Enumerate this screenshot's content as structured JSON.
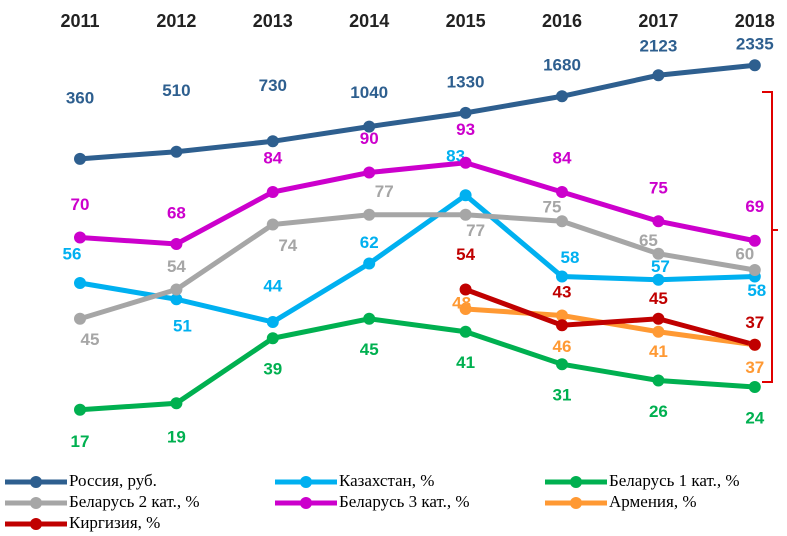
{
  "chart_data": {
    "type": "line",
    "categories": [
      "2011",
      "2012",
      "2013",
      "2014",
      "2015",
      "2016",
      "2017",
      "2018"
    ],
    "ylim": [
      0,
      140
    ],
    "y2lim": [
      -6100,
      3500
    ],
    "series": [
      {
        "name": "Россия, руб.",
        "color": "#2e5f8f",
        "axis": "y2",
        "values": [
          360,
          510,
          730,
          1040,
          1330,
          1680,
          2123,
          2335
        ]
      },
      {
        "name": "Казахстан, %",
        "color": "#00b0f0",
        "values": [
          56,
          51,
          44,
          62,
          83,
          58,
          57,
          58
        ]
      },
      {
        "name": "Беларусь 1 кат., %",
        "color": "#00b050",
        "values": [
          17,
          19,
          39,
          45,
          41,
          31,
          26,
          24
        ]
      },
      {
        "name": "Беларусь 2 кат., %",
        "color": "#a6a6a6",
        "values": [
          45,
          54,
          74,
          77,
          77,
          75,
          65,
          60
        ]
      },
      {
        "name": "Беларусь 3 кат., %",
        "color": "#cc00cc",
        "values": [
          70,
          68,
          84,
          90,
          93,
          84,
          75,
          69
        ]
      },
      {
        "name": "Армения, %",
        "color": "#ff9933",
        "values": [
          null,
          null,
          null,
          null,
          48,
          46,
          41,
          37
        ]
      },
      {
        "name": "Киргизия, %",
        "color": "#c00000",
        "values": [
          null,
          null,
          null,
          null,
          54,
          43,
          45,
          37
        ]
      }
    ]
  }
}
